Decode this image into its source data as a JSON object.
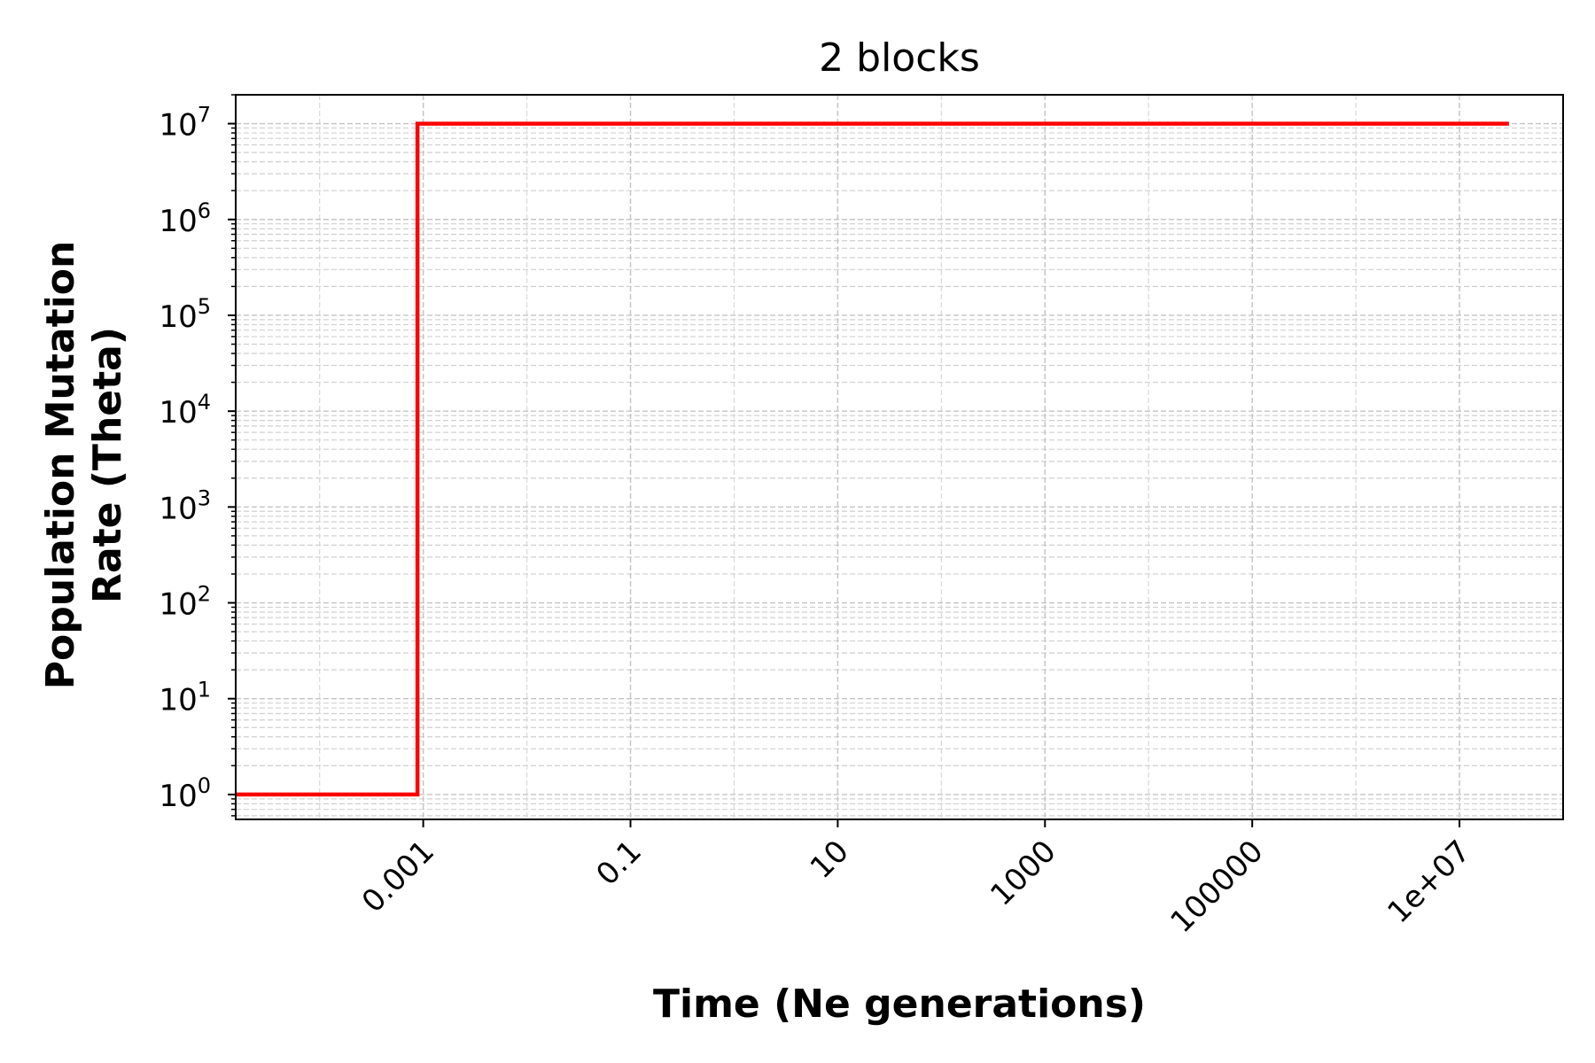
{
  "chart_data": {
    "type": "line",
    "title": "2 blocks",
    "xlabel": "Time (Ne generations)",
    "ylabel_lines": [
      "Population Mutation",
      "Rate (Theta)"
    ],
    "xscale": "log",
    "yscale": "log",
    "xlim": [
      1.55e-05,
      100000000
    ],
    "ylim": [
      0.55,
      20000000
    ],
    "x_ticks": [
      {
        "value": 0.001,
        "label": "0.001"
      },
      {
        "value": 0.1,
        "label": "0.1"
      },
      {
        "value": 10,
        "label": "10"
      },
      {
        "value": 1000,
        "label": "1000"
      },
      {
        "value": 100000,
        "label": "100000"
      },
      {
        "value": 10000000,
        "label": "1e+07"
      }
    ],
    "y_ticks": [
      {
        "value": 1,
        "base": "10",
        "exp": "0"
      },
      {
        "value": 10,
        "base": "10",
        "exp": "1"
      },
      {
        "value": 100,
        "base": "10",
        "exp": "2"
      },
      {
        "value": 1000,
        "base": "10",
        "exp": "3"
      },
      {
        "value": 10000,
        "base": "10",
        "exp": "4"
      },
      {
        "value": 100000,
        "base": "10",
        "exp": "5"
      },
      {
        "value": 1000000,
        "base": "10",
        "exp": "6"
      },
      {
        "value": 10000000,
        "base": "10",
        "exp": "7"
      }
    ],
    "grid": true,
    "legend": false,
    "series": [
      {
        "color": "#ff0000",
        "step": true,
        "x": [
          1.55e-05,
          0.00088,
          0.00088,
          30000000
        ],
        "y": [
          1,
          1,
          10000000,
          10000000
        ]
      }
    ]
  }
}
